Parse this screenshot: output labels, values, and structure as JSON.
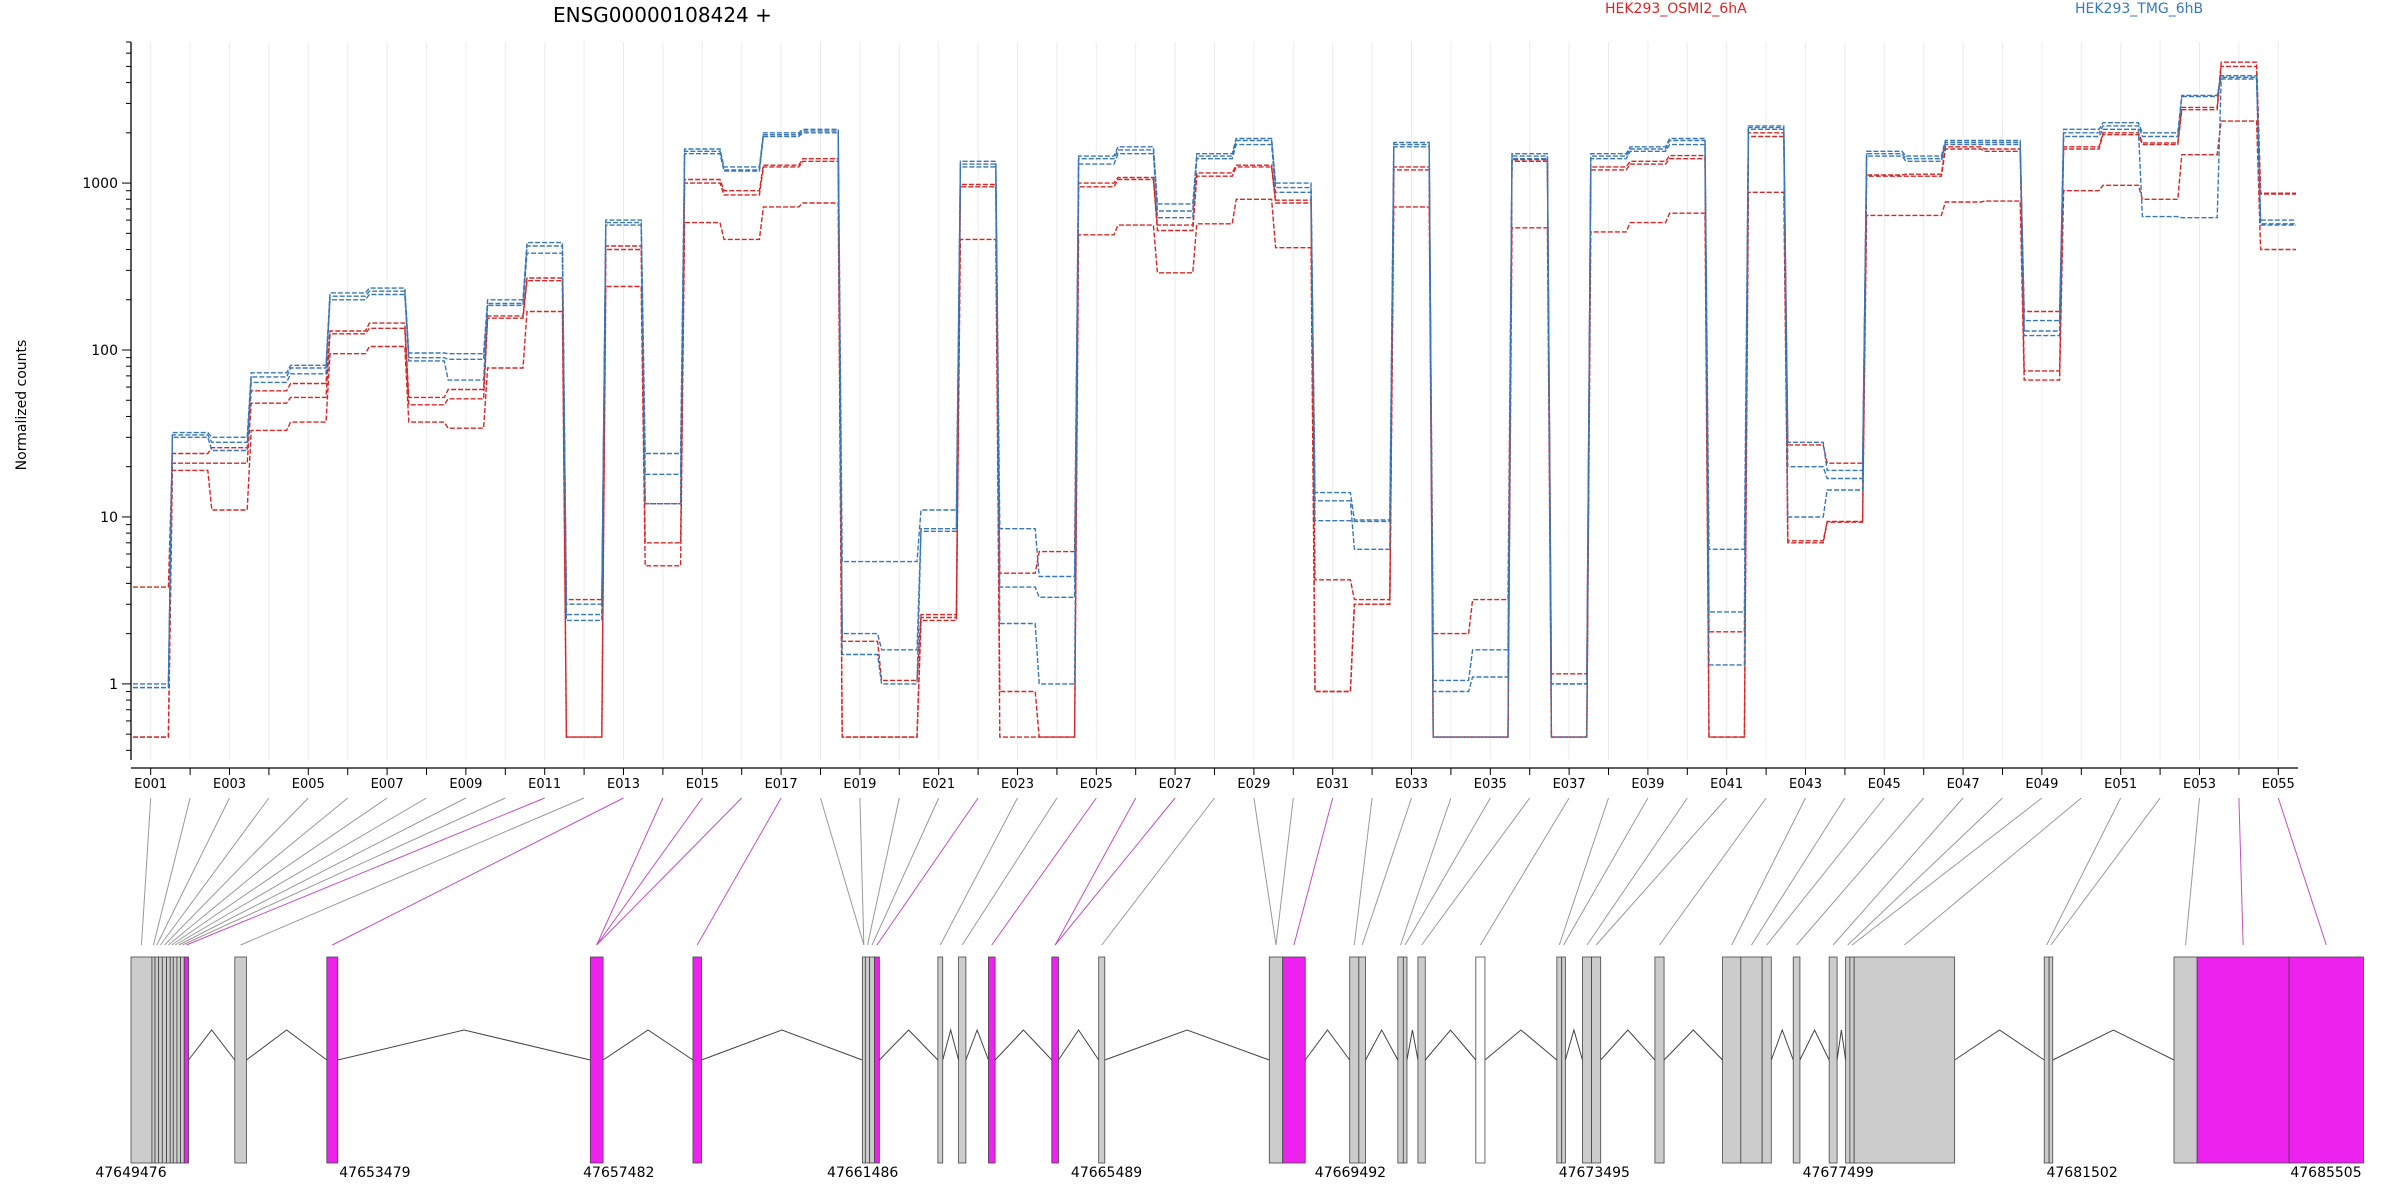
{
  "chart_data": {
    "type": "line",
    "title": "ENSG00000108424 +",
    "ylabel": "Normalized counts",
    "yscale": "log",
    "ylim": [
      0.35,
      7000
    ],
    "yticks": [
      1,
      10,
      100,
      1000
    ],
    "ytick_labels": [
      "1",
      "10",
      "100",
      "1000"
    ],
    "exons": [
      "E001",
      "E002",
      "E003",
      "E004",
      "E005",
      "E006",
      "E007",
      "E008",
      "E009",
      "E010",
      "E011",
      "E012",
      "E013",
      "E014",
      "E015",
      "E016",
      "E017",
      "E018",
      "E019",
      "E020",
      "E021",
      "E022",
      "E023",
      "E024",
      "E025",
      "E026",
      "E027",
      "E028",
      "E029",
      "E030",
      "E031",
      "E032",
      "E033",
      "E034",
      "E035",
      "E036",
      "E037",
      "E038",
      "E039",
      "E040",
      "E041",
      "E042",
      "E043",
      "E044",
      "E045",
      "E046",
      "E047",
      "E048",
      "E049",
      "E050",
      "E051",
      "E052",
      "E053",
      "E054",
      "E055"
    ],
    "legend": [
      {
        "name": "HEK293_OSMI2_6hA",
        "color": "#d62728"
      },
      {
        "name": "HEK293_TMG_6hB",
        "color": "#3a78b5"
      }
    ],
    "series": [
      {
        "group": "HEK293_OSMI2_6hA",
        "color": "#d62728",
        "values": [
          3.8,
          24,
          26,
          57,
          63,
          130,
          145,
          52,
          58,
          160,
          270,
          3.2,
          420,
          12,
          1050,
          900,
          1280,
          1400,
          1.8,
          1.05,
          2.6,
          980,
          4.6,
          6.2,
          1000,
          1080,
          560,
          1150,
          1280,
          790,
          4.2,
          3.2,
          1250,
          2,
          3.2,
          1380,
          1.15,
          1250,
          1350,
          1460,
          2.05,
          2000,
          27,
          21,
          1120,
          1130,
          1650,
          1600,
          170,
          1650,
          2000,
          1740,
          2840,
          5300,
          860
        ]
      },
      {
        "group": "HEK293_OSMI2_6hA",
        "color": "#d62728",
        "values": [
          0.48,
          21,
          21,
          48,
          52,
          125,
          135,
          47,
          51,
          155,
          260,
          0.48,
          400,
          7,
          1000,
          850,
          1250,
          1350,
          0.48,
          0.48,
          2.5,
          950,
          0.48,
          0.48,
          950,
          1050,
          520,
          1100,
          1250,
          760,
          0.9,
          3,
          1200,
          0.48,
          0.48,
          1350,
          0.48,
          1200,
          1300,
          1400,
          0.48,
          1900,
          7.2,
          9.4,
          1100,
          1100,
          1600,
          1550,
          75,
          1600,
          1950,
          1700,
          2750,
          5000,
          870
        ]
      },
      {
        "group": "HEK293_OSMI2_6hA",
        "color": "#d62728",
        "values": [
          0.48,
          19,
          11,
          33,
          37,
          95,
          105,
          37,
          34,
          78,
          170,
          0.48,
          240,
          5.1,
          580,
          460,
          720,
          760,
          0.48,
          0.48,
          2.4,
          460,
          0.9,
          0.48,
          490,
          560,
          290,
          570,
          800,
          410,
          0.9,
          3,
          720,
          0.48,
          0.48,
          540,
          0.48,
          510,
          580,
          660,
          0.48,
          880,
          7,
          9.3,
          640,
          640,
          770,
          780,
          66,
          900,
          970,
          800,
          1480,
          2350,
          400
        ]
      },
      {
        "group": "HEK293_TMG_6hB",
        "color": "#3a78b5",
        "values": [
          1.0,
          32,
          30,
          73,
          81,
          220,
          235,
          96,
          95,
          200,
          440,
          3.0,
          600,
          24,
          1600,
          1250,
          2000,
          2100,
          5.4,
          5.4,
          11,
          1350,
          8.5,
          4.4,
          1450,
          1650,
          750,
          1500,
          1850,
          1000,
          14,
          9.6,
          1750,
          1.05,
          1.6,
          1500,
          1.0,
          1500,
          1650,
          1850,
          6.4,
          2200,
          28,
          19,
          1550,
          1450,
          1800,
          1800,
          150,
          2100,
          2300,
          2000,
          3350,
          4400,
          600
        ]
      },
      {
        "group": "HEK293_TMG_6hB",
        "color": "#3a78b5",
        "values": [
          0.95,
          31,
          28,
          69,
          78,
          210,
          225,
          90,
          88,
          190,
          420,
          2.6,
          580,
          18,
          1550,
          1200,
          1950,
          2050,
          2.0,
          1.6,
          8.5,
          1300,
          3.8,
          3.3,
          1400,
          1580,
          680,
          1450,
          1800,
          940,
          9.5,
          9.4,
          1700,
          0.9,
          1.1,
          1450,
          1.0,
          1450,
          1600,
          1800,
          2.7,
          2150,
          20,
          17,
          1500,
          1400,
          1750,
          1750,
          130,
          2000,
          2200,
          1900,
          3300,
          4300,
          570
        ]
      },
      {
        "group": "HEK293_TMG_6hB",
        "color": "#3a78b5",
        "values": [
          0.95,
          30,
          25,
          64,
          72,
          200,
          215,
          86,
          66,
          185,
          380,
          2.4,
          560,
          12,
          1500,
          1180,
          1900,
          2000,
          1.5,
          1.0,
          8.2,
          1250,
          2.3,
          1.0,
          1300,
          1500,
          620,
          1400,
          1700,
          880,
          12.5,
          6.4,
          1650,
          0.48,
          0.48,
          1400,
          0.48,
          1400,
          1550,
          1700,
          1.3,
          2100,
          10,
          14.5,
          1450,
          1350,
          1700,
          1700,
          122,
          1900,
          2100,
          630,
          620,
          4200,
          560
        ]
      }
    ],
    "axis_labels": {
      "exon_ticks": [
        "E001",
        "E003",
        "E005",
        "E007",
        "E009",
        "E011",
        "E013",
        "E015",
        "E017",
        "E019",
        "E021",
        "E023",
        "E025",
        "E027",
        "E029",
        "E031",
        "E033",
        "E035",
        "E037",
        "E039",
        "E041",
        "E043",
        "E045",
        "E047",
        "E049",
        "E051",
        "E053",
        "E055"
      ],
      "genomic_ticks": [
        "47649476",
        "47653479",
        "47657482",
        "47661486",
        "47665489",
        "47669492",
        "47673495",
        "47677499",
        "47681502",
        "47685505"
      ]
    },
    "gene_model": {
      "start": 47649476,
      "end": 47685505,
      "highlight_color": "#ee22ee",
      "exon_color": "#cccccc",
      "features": [
        {
          "start": 47649476,
          "end": 47649820,
          "hl": false
        },
        {
          "start": 47649820,
          "end": 47649870,
          "hl": false
        },
        {
          "start": 47649870,
          "end": 47649930,
          "hl": false
        },
        {
          "start": 47649930,
          "end": 47649990,
          "hl": false
        },
        {
          "start": 47649990,
          "end": 47650060,
          "hl": false
        },
        {
          "start": 47650060,
          "end": 47650120,
          "hl": false
        },
        {
          "start": 47650120,
          "end": 47650170,
          "hl": false
        },
        {
          "start": 47650170,
          "end": 47650230,
          "hl": false
        },
        {
          "start": 47650230,
          "end": 47650290,
          "hl": false
        },
        {
          "start": 47650290,
          "end": 47650350,
          "hl": false
        },
        {
          "start": 47650350,
          "end": 47650420,
          "hl": true
        },
        {
          "start": 47651180,
          "end": 47651370,
          "hl": false
        },
        {
          "start": 47652690,
          "end": 47652870,
          "hl": true
        },
        {
          "start": 47657015,
          "end": 47657225,
          "hl": true
        },
        {
          "start": 47658700,
          "end": 47658840,
          "hl": true
        },
        {
          "start": 47661480,
          "end": 47661530,
          "hl": false
        },
        {
          "start": 47661530,
          "end": 47661600,
          "hl": false
        },
        {
          "start": 47661600,
          "end": 47661680,
          "hl": false
        },
        {
          "start": 47661680,
          "end": 47661760,
          "hl": true
        },
        {
          "start": 47662720,
          "end": 47662800,
          "hl": false
        },
        {
          "start": 47663060,
          "end": 47663180,
          "hl": false
        },
        {
          "start": 47663550,
          "end": 47663660,
          "hl": true
        },
        {
          "start": 47664590,
          "end": 47664700,
          "hl": true
        },
        {
          "start": 47665360,
          "end": 47665460,
          "hl": false
        },
        {
          "start": 47668160,
          "end": 47668380,
          "hl": false
        },
        {
          "start": 47668380,
          "end": 47668750,
          "hl": true
        },
        {
          "start": 47669480,
          "end": 47669630,
          "hl": false
        },
        {
          "start": 47669630,
          "end": 47669740,
          "hl": false
        },
        {
          "start": 47670270,
          "end": 47670360,
          "hl": false
        },
        {
          "start": 47670360,
          "end": 47670420,
          "hl": false
        },
        {
          "start": 47670600,
          "end": 47670720,
          "hl": false
        },
        {
          "start": 47671550,
          "end": 47671700,
          "hl": false,
          "open": true
        },
        {
          "start": 47672880,
          "end": 47672960,
          "hl": false
        },
        {
          "start": 47672960,
          "end": 47673020,
          "hl": false
        },
        {
          "start": 47673300,
          "end": 47673450,
          "hl": false
        },
        {
          "start": 47673450,
          "end": 47673600,
          "hl": false
        },
        {
          "start": 47674490,
          "end": 47674640,
          "hl": false
        },
        {
          "start": 47675600,
          "end": 47675900,
          "hl": false
        },
        {
          "start": 47675900,
          "end": 47676250,
          "hl": false
        },
        {
          "start": 47676250,
          "end": 47676400,
          "hl": false
        },
        {
          "start": 47676760,
          "end": 47676870,
          "hl": false
        },
        {
          "start": 47677350,
          "end": 47677480,
          "hl": false
        },
        {
          "start": 47677620,
          "end": 47677690,
          "hl": false
        },
        {
          "start": 47677690,
          "end": 47677760,
          "hl": false
        },
        {
          "start": 47677760,
          "end": 47679410,
          "hl": false
        },
        {
          "start": 47680880,
          "end": 47680960,
          "hl": false
        },
        {
          "start": 47680960,
          "end": 47681020,
          "hl": false
        },
        {
          "start": 47683010,
          "end": 47683390,
          "hl": false
        },
        {
          "start": 47683390,
          "end": 47684900,
          "hl": true
        },
        {
          "start": 47684900,
          "end": 47686120,
          "hl": true
        }
      ]
    },
    "connector_map": [
      0,
      1,
      2,
      3,
      4,
      5,
      6,
      7,
      8,
      9,
      10,
      11,
      12,
      13,
      13,
      13,
      14,
      15,
      15,
      16,
      17,
      18,
      19,
      20,
      21,
      22,
      22,
      23,
      24,
      24,
      25,
      26,
      27,
      28,
      29,
      30,
      31,
      32,
      33,
      34,
      35,
      36,
      37,
      38,
      39,
      40,
      41,
      42,
      43,
      44,
      45,
      46,
      47,
      48,
      49
    ]
  }
}
